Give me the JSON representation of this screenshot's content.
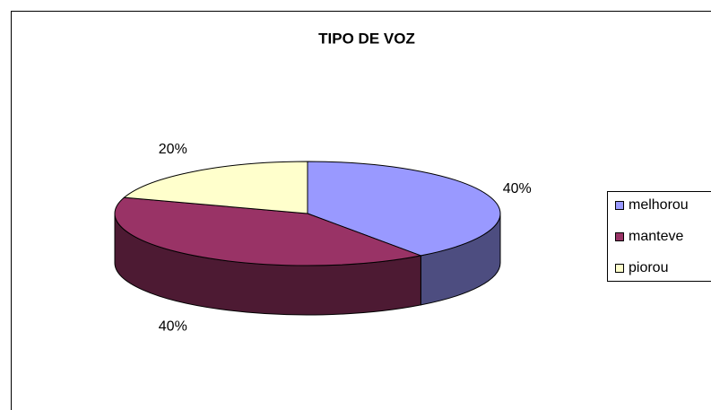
{
  "chart_data": {
    "type": "pie",
    "title": "TIPO DE VOZ",
    "categories": [
      "melhorou",
      "manteve",
      "piorou"
    ],
    "values": [
      40,
      40,
      20
    ],
    "value_labels": [
      "40%",
      "40%",
      "20%"
    ],
    "colors": [
      "#9999ff",
      "#993366",
      "#ffffcc"
    ],
    "legend": "right"
  }
}
